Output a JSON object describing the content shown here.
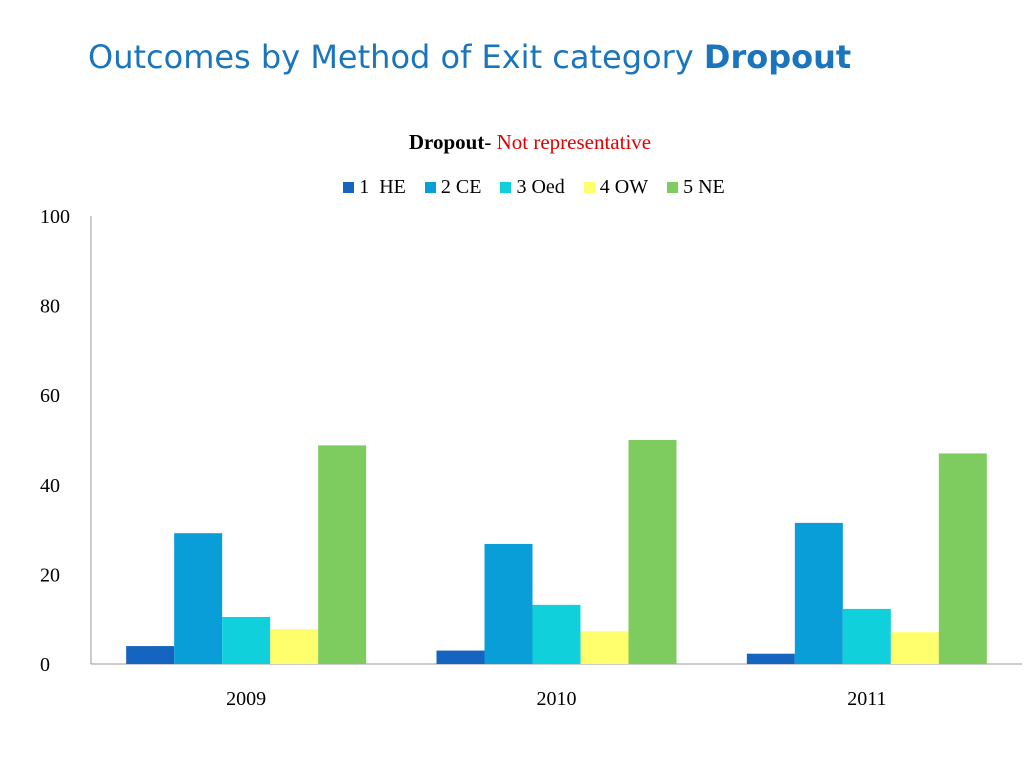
{
  "slide": {
    "title_main": "Outcomes by Method of Exit category ",
    "title_bold": "Dropout"
  },
  "chart_data": {
    "type": "bar",
    "title": "Dropout",
    "subtitle": "Not representative",
    "title_separator": "-",
    "categories": [
      "2009",
      "2010",
      "2011"
    ],
    "series": [
      {
        "name": "1  HE",
        "color": "#1565c0",
        "values": [
          4,
          3,
          2.3
        ]
      },
      {
        "name": "2 CE",
        "color": "#0a9ed8",
        "values": [
          29.2,
          26.8,
          31.5
        ]
      },
      {
        "name": "3 Oed",
        "color": "#10d0dc",
        "values": [
          10.5,
          13.2,
          12.3
        ]
      },
      {
        "name": "4 OW",
        "color": "#ffff6e",
        "values": [
          7.8,
          7.3,
          7.1
        ]
      },
      {
        "name": "5 NE",
        "color": "#7ecb60",
        "values": [
          48.8,
          50,
          47
        ]
      }
    ],
    "ylim": [
      0,
      100
    ],
    "yticks": [
      "0",
      "20",
      "40",
      "60",
      "80",
      "100"
    ],
    "xlabel": "",
    "ylabel": "",
    "grid": false,
    "legend_position": "top"
  }
}
